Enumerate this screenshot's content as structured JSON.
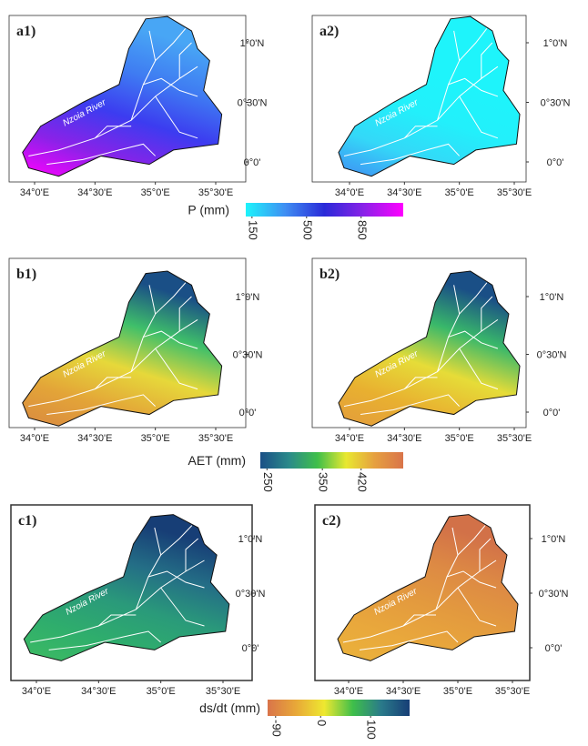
{
  "panels": [
    {
      "label": "a1)",
      "fill": [
        "#ff00ff",
        "#8a22e8",
        "#3c3cf0",
        "#3f7cf2",
        "#48a6f5"
      ]
    },
    {
      "label": "a2)",
      "fill": [
        "#3f8ef3",
        "#34d8f8",
        "#22f0fb",
        "#1ef4fb",
        "#1ef4fb"
      ]
    },
    {
      "label": "b1)",
      "fill": [
        "#d98a40",
        "#e3a438",
        "#e6d83a",
        "#3fbf6a",
        "#1a4f86"
      ]
    },
    {
      "label": "b2)",
      "fill": [
        "#e39c3c",
        "#e8b030",
        "#e6dc38",
        "#39b86a",
        "#1a4f86"
      ]
    },
    {
      "label": "c1)",
      "fill": [
        "#3dbb62",
        "#2fae6c",
        "#2a9a7a",
        "#246e86",
        "#173e76"
      ]
    },
    {
      "label": "c2)",
      "fill": [
        "#eab23a",
        "#e9a83c",
        "#e39a3e",
        "#dd8a44",
        "#d27148"
      ]
    }
  ],
  "lon_ticks": [
    {
      "value": 34,
      "label": "34°0'E"
    },
    {
      "value": 34.5,
      "label": "34°30'E"
    },
    {
      "value": 35,
      "label": "35°0'E"
    },
    {
      "value": 35.5,
      "label": "35°30'E"
    }
  ],
  "lat_ticks": [
    {
      "value": 1,
      "label": "1°0'N"
    },
    {
      "value": 0.5,
      "label": "0°30'N"
    },
    {
      "value": 0,
      "label": "0°0'"
    }
  ],
  "river_label": "Nzoia River",
  "colorbars": [
    {
      "title": "P (mm)",
      "range": [
        110,
        1120
      ],
      "ticks": [
        150,
        500,
        850
      ],
      "colors": [
        "#1ef4fb",
        "#3f8ef3",
        "#2a2ad8",
        "#8a22e8",
        "#ff00ff"
      ]
    },
    {
      "title": "AET (mm)",
      "range": [
        238,
        496
      ],
      "ticks": [
        250,
        350,
        420
      ],
      "colors": [
        "#1a4f86",
        "#2a8a8a",
        "#3fbf4a",
        "#e8e830",
        "#e6a040",
        "#d9744a"
      ]
    },
    {
      "title": "ds/dt (mm)",
      "range": [
        -106,
        178
      ],
      "ticks": [
        -90,
        0,
        100
      ],
      "colors": [
        "#d9744a",
        "#e8a838",
        "#eee830",
        "#3fbf4a",
        "#2a7a8a",
        "#173e76"
      ]
    }
  ]
}
